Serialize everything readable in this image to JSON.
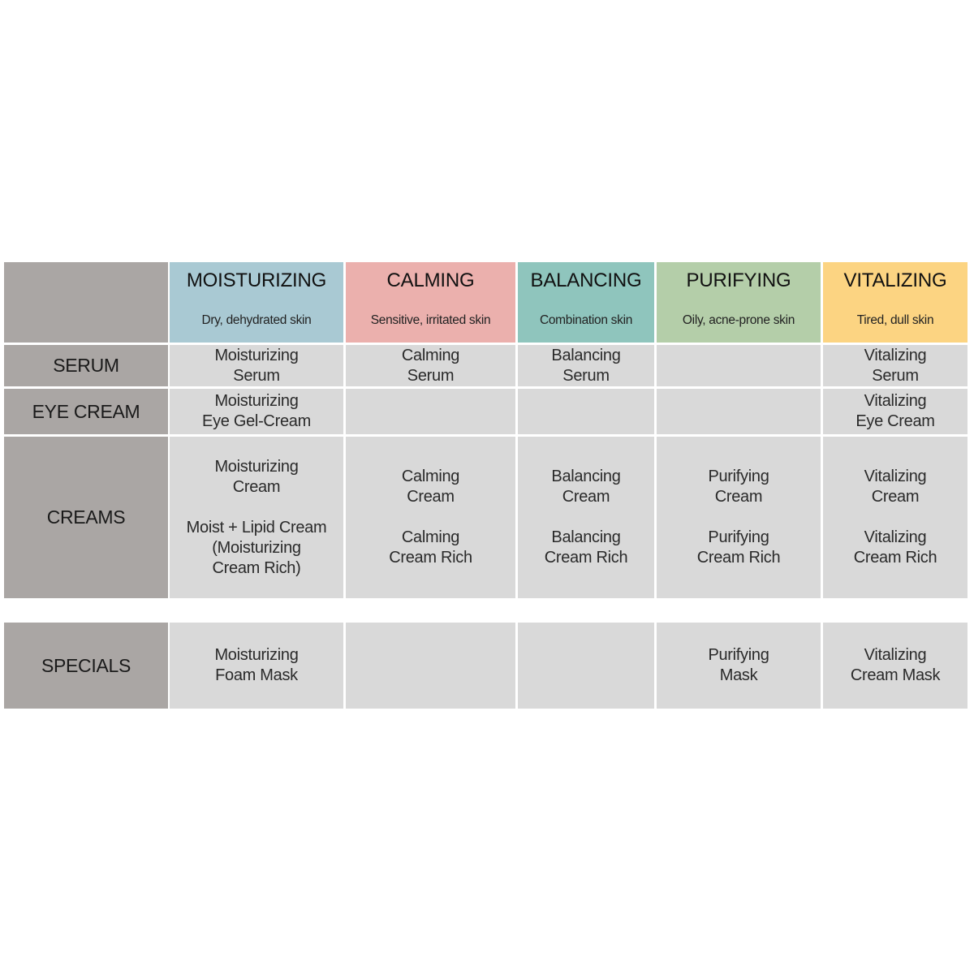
{
  "columns": [
    {
      "title": "MOISTURIZING",
      "subtitle": "Dry, dehydrated skin",
      "color": "#a9c9d3"
    },
    {
      "title": "CALMING",
      "subtitle": "Sensitive, irritated skin",
      "color": "#ebb0ad"
    },
    {
      "title": "BALANCING",
      "subtitle": "Combination skin",
      "color": "#8fc5bd"
    },
    {
      "title": "PURIFYING",
      "subtitle": "Oily, acne-prone skin",
      "color": "#b4cea9"
    },
    {
      "title": "VITALIZING",
      "subtitle": "Tired, dull skin",
      "color": "#fcd482"
    }
  ],
  "rows": [
    {
      "label": "SERUM",
      "cells": [
        [
          "Moisturizing\nSerum"
        ],
        [
          "Calming\nSerum"
        ],
        [
          "Balancing\nSerum"
        ],
        [],
        [
          "Vitalizing\nSerum"
        ]
      ]
    },
    {
      "label": "EYE CREAM",
      "cells": [
        [
          "Moisturizing\nEye Gel-Cream"
        ],
        [],
        [],
        [],
        [
          "Vitalizing\nEye Cream"
        ]
      ]
    },
    {
      "label": "CREAMS",
      "cells": [
        [
          "Moisturizing\nCream",
          "Moist + Lipid Cream\n(Moisturizing\nCream Rich)"
        ],
        [
          "Calming\nCream",
          "Calming\nCream Rich"
        ],
        [
          "Balancing\nCream",
          "Balancing\nCream Rich"
        ],
        [
          "Purifying\nCream",
          "Purifying\nCream Rich"
        ],
        [
          "Vitalizing\nCream",
          "Vitalizing\nCream Rich"
        ]
      ]
    },
    {
      "label": "SPECIALS",
      "cells": [
        [
          "Moisturizing\nFoam Mask"
        ],
        [],
        [],
        [
          "Purifying\nMask"
        ],
        [
          "Vitalizing\nCream Mask"
        ]
      ]
    }
  ]
}
